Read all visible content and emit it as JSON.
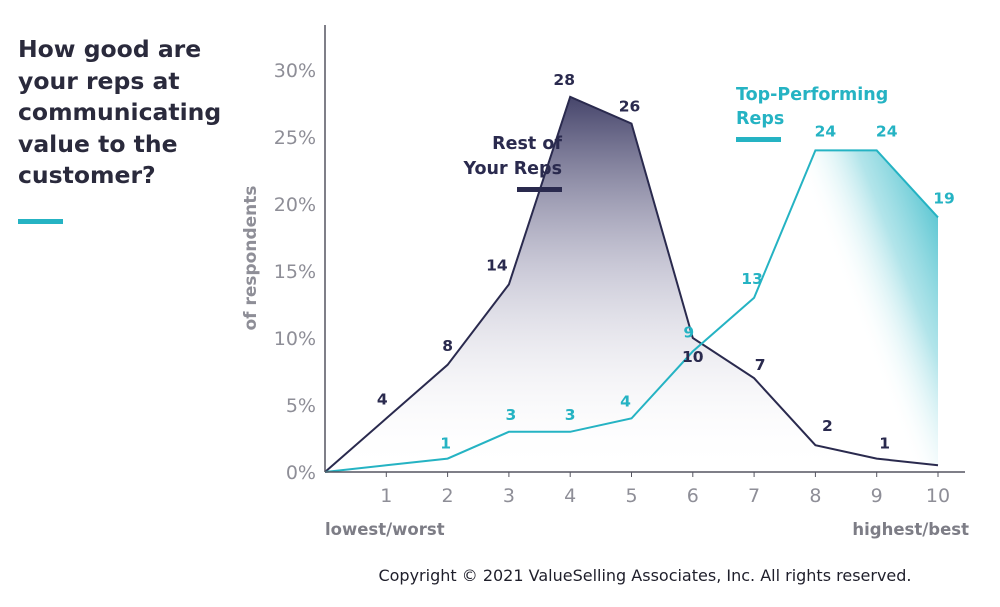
{
  "title": "How good are\nyour reps at\ncommunicating\nvalue to the\ncustomer?",
  "copyright": "Copyright © 2021  ValueSelling Associates, Inc. All rights reserved.",
  "colors": {
    "rest": "#2a2a4e",
    "top": "#25b3c3",
    "axis": "#555560",
    "tick": "#8e8e97"
  },
  "chart_data": {
    "type": "area",
    "ylabel": "of respondents",
    "x_start": 0,
    "categories": [
      "1",
      "2",
      "3",
      "4",
      "5",
      "6",
      "7",
      "8",
      "9",
      "10"
    ],
    "xlabel_left": "lowest/worst",
    "xlabel_right": "highest/best",
    "yticks": [
      "0%",
      "5%",
      "10%",
      "15%",
      "20%",
      "25%",
      "30%"
    ],
    "ylim": [
      0,
      32
    ],
    "series": [
      {
        "name": "Rest of Your Reps",
        "color": "#2a2a4e",
        "values": [
          4,
          8,
          14,
          28,
          26,
          10,
          7,
          2,
          1,
          0.5
        ],
        "labels": [
          "4",
          "8",
          "14",
          "28",
          "26",
          "10",
          "7",
          "2",
          "1",
          ""
        ]
      },
      {
        "name": "Top-Performing Reps",
        "color": "#25b3c3",
        "values": [
          0.5,
          1,
          3,
          3,
          4,
          9,
          13,
          24,
          24,
          19
        ],
        "labels": [
          "",
          "1",
          "3",
          "3",
          "4",
          "9",
          "13",
          "24",
          "24",
          "19"
        ]
      }
    ]
  }
}
